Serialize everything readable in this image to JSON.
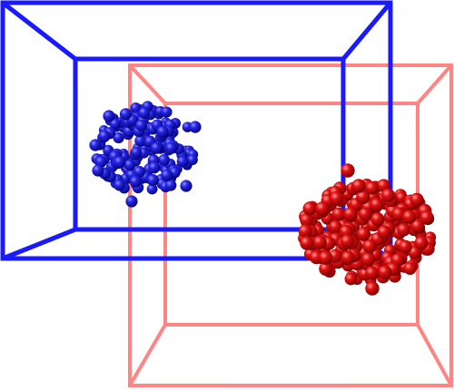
{
  "scene": {
    "background": "#ffffff",
    "boxes": [
      {
        "name": "blue-box",
        "color": "#1a1aff",
        "opacity": 1.0
      },
      {
        "name": "red-box",
        "color": "#ff7f7f",
        "opacity": 0.95
      }
    ],
    "clusters": [
      {
        "name": "blue-cluster",
        "color": "#1414c8",
        "highlight": "#8f8fff",
        "shadow": "#00006e",
        "count": 170
      },
      {
        "name": "red-cluster",
        "color": "#e01010",
        "highlight": "#ff9a9a",
        "shadow": "#6e0000",
        "count": 260
      }
    ]
  }
}
